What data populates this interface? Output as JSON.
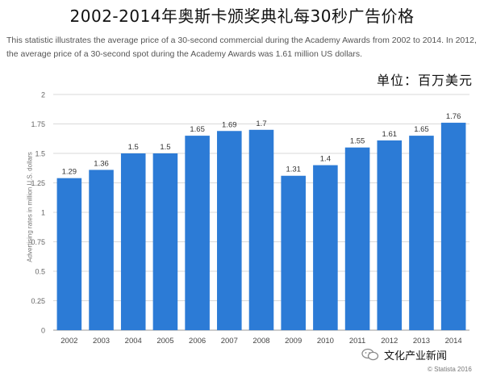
{
  "title": "2002-2014年奥斯卡颁奖典礼每30秒广告价格",
  "description": "This statistic illustrates the average price of a 30-second commercial during the Academy Awards from 2002 to 2014. In 2012, the average price of a 30-second spot during the Academy Awards was 1.61 million US dollars.",
  "unit_label": "单位：百万美元",
  "watermark": "文化产业新闻",
  "credit": "© Statista 2016",
  "colors": {
    "bar": "#2c7bd6",
    "grid": "#d9d9d9",
    "tick": "#666666"
  },
  "chart_data": {
    "type": "bar",
    "title": "",
    "xlabel": "",
    "ylabel": "Advertising rates in million U.S. dollars",
    "categories": [
      "2002",
      "2003",
      "2004",
      "2005",
      "2006",
      "2007",
      "2008",
      "2009",
      "2010",
      "2011",
      "2012",
      "2013",
      "2014"
    ],
    "values": [
      1.29,
      1.36,
      1.5,
      1.5,
      1.65,
      1.69,
      1.7,
      1.31,
      1.4,
      1.55,
      1.61,
      1.65,
      1.76
    ],
    "value_labels": [
      "1.29",
      "1.36",
      "1.5",
      "1.5",
      "1.65",
      "1.69",
      "1.7",
      "1.31",
      "1.4",
      "1.55",
      "1.61",
      "1.65",
      "1.76"
    ],
    "yticks": [
      0,
      0.25,
      0.5,
      0.75,
      1,
      1.25,
      1.5,
      1.75,
      2
    ],
    "ytick_labels": [
      "0",
      "0.25",
      "0.5",
      "0.75",
      "1",
      "1.25",
      "1.5",
      "1.75",
      "2"
    ],
    "ylim": [
      0,
      2
    ],
    "grid": true,
    "legend": false
  }
}
